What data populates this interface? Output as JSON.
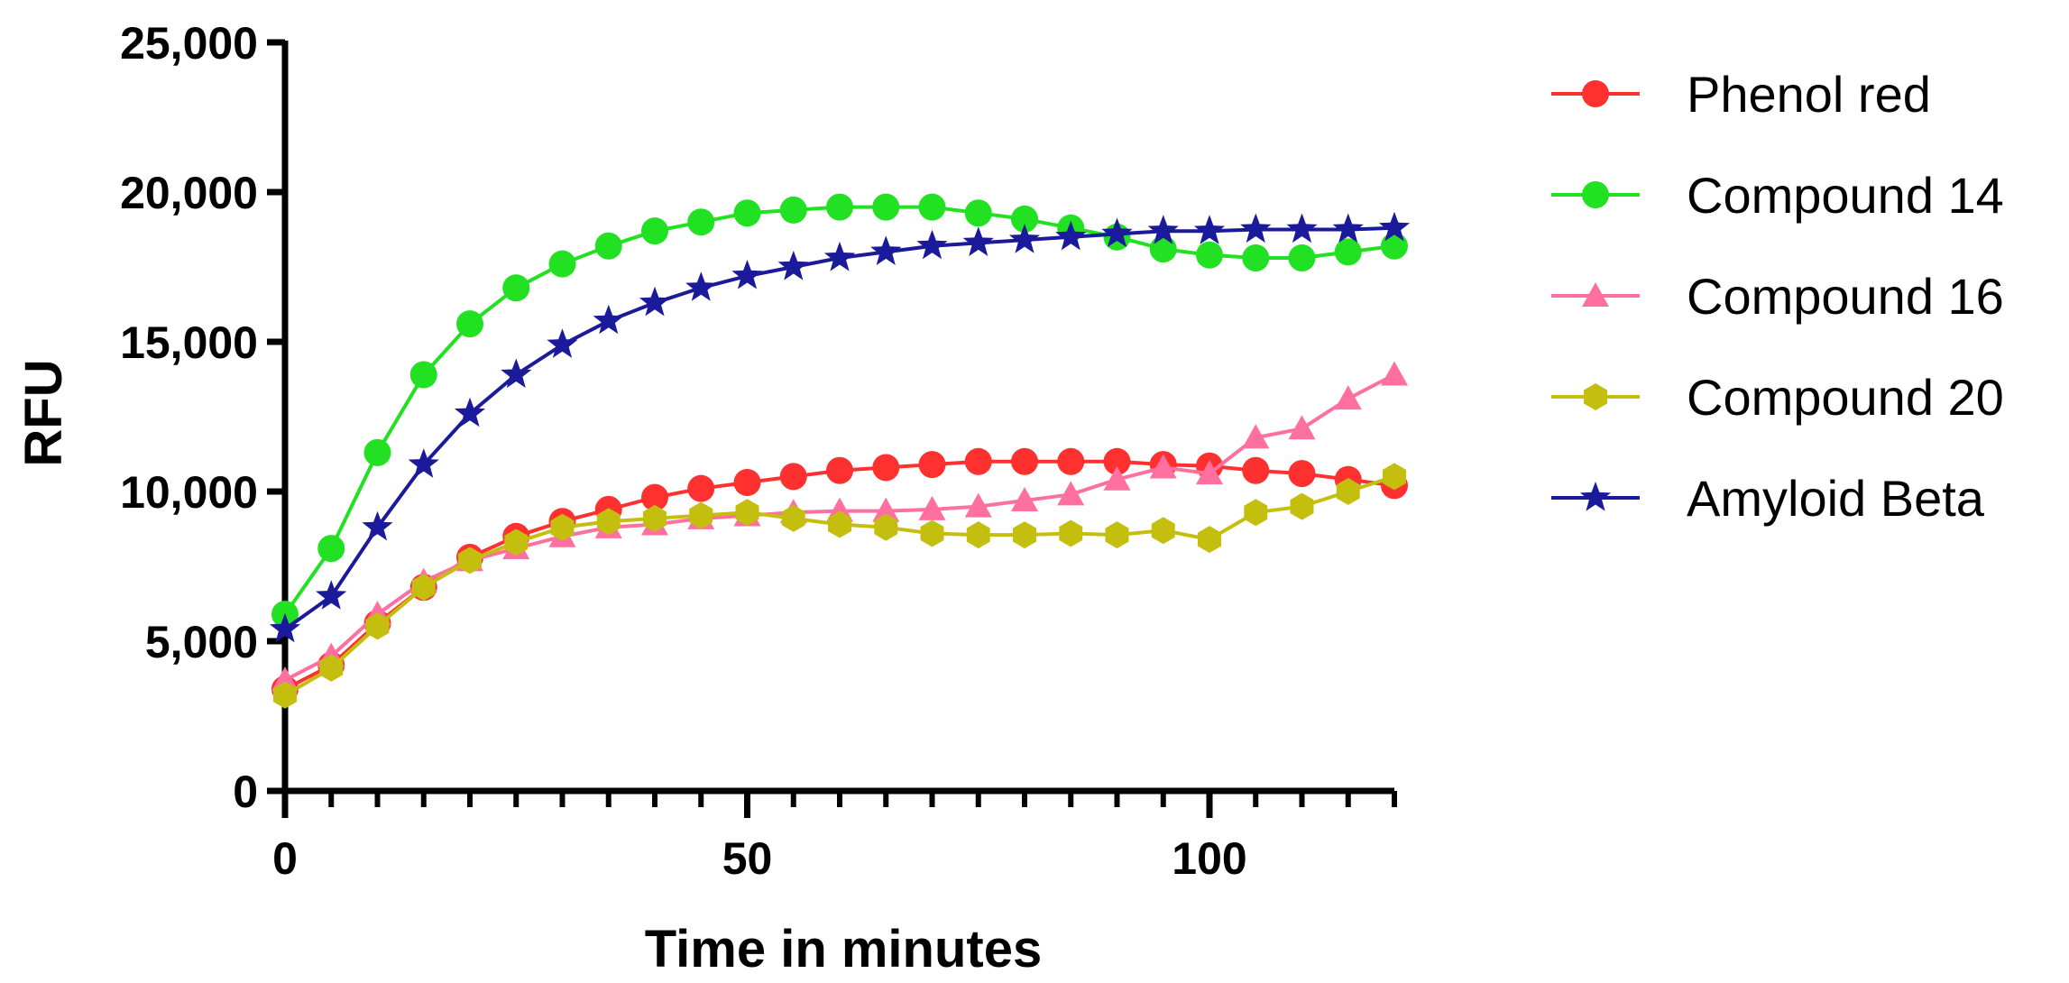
{
  "chart_data": {
    "type": "line",
    "xlabel": "Time in minutes",
    "ylabel": "RFU",
    "xlim": [
      0,
      120
    ],
    "ylim": [
      0,
      25000
    ],
    "xticks": [
      0,
      50,
      100
    ],
    "xtick_labels": [
      "0",
      "50",
      "100"
    ],
    "xminor_ticks": [
      5,
      10,
      15,
      20,
      25,
      30,
      35,
      40,
      45,
      55,
      60,
      65,
      70,
      75,
      80,
      85,
      90,
      95,
      105,
      110,
      115,
      120
    ],
    "yticks": [
      0,
      5000,
      10000,
      15000,
      20000,
      25000
    ],
    "ytick_labels": [
      "0",
      "5,000",
      "10,000",
      "15,000",
      "20,000",
      "25,000"
    ],
    "grid": false,
    "legend_position": "right",
    "x": [
      0,
      5,
      10,
      15,
      20,
      25,
      30,
      35,
      40,
      45,
      50,
      55,
      60,
      65,
      70,
      75,
      80,
      85,
      90,
      95,
      100,
      105,
      110,
      115,
      120
    ],
    "series": [
      {
        "name": "Phenol red",
        "color": "#ff3030",
        "marker": "circle",
        "values": [
          3400,
          4200,
          5600,
          6800,
          7800,
          8500,
          9000,
          9400,
          9800,
          10100,
          10300,
          10500,
          10700,
          10800,
          10900,
          11000,
          11000,
          11000,
          11000,
          10900,
          10850,
          10700,
          10600,
          10400,
          10200
        ]
      },
      {
        "name": "Compound 14",
        "color": "#22e022",
        "marker": "circle",
        "values": [
          5900,
          8100,
          11300,
          13900,
          15600,
          16800,
          17600,
          18200,
          18700,
          19000,
          19300,
          19400,
          19500,
          19500,
          19500,
          19300,
          19100,
          18800,
          18500,
          18100,
          17900,
          17800,
          17800,
          18000,
          18200
        ]
      },
      {
        "name": "Compound 16",
        "color": "#ff6fa0",
        "marker": "triangle",
        "values": [
          3700,
          4500,
          5900,
          7000,
          7700,
          8100,
          8500,
          8800,
          8900,
          9100,
          9200,
          9300,
          9350,
          9350,
          9400,
          9500,
          9700,
          9900,
          10400,
          10800,
          10600,
          11800,
          12100,
          13100,
          13900
        ]
      },
      {
        "name": "Compound 20",
        "color": "#c4bf0e",
        "marker": "hexagon",
        "values": [
          3200,
          4100,
          5500,
          6800,
          7700,
          8300,
          8800,
          9000,
          9100,
          9200,
          9300,
          9100,
          8900,
          8800,
          8600,
          8550,
          8550,
          8600,
          8550,
          8700,
          8400,
          9300,
          9500,
          10000,
          10500
        ]
      },
      {
        "name": "Amyloid Beta",
        "color": "#1a1a9a",
        "marker": "star",
        "values": [
          5400,
          6500,
          8800,
          10900,
          12600,
          13900,
          14900,
          15700,
          16300,
          16800,
          17200,
          17500,
          17800,
          18000,
          18200,
          18300,
          18400,
          18500,
          18600,
          18700,
          18700,
          18750,
          18750,
          18750,
          18800
        ]
      }
    ]
  }
}
